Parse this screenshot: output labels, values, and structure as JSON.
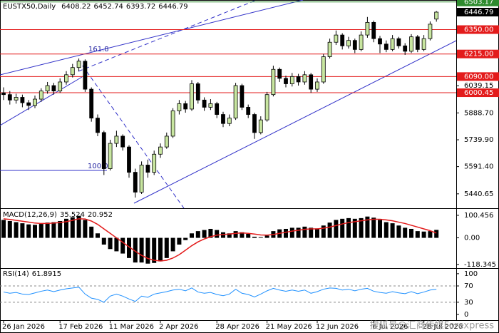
{
  "chart_data": [
    {
      "type": "candlestick",
      "symbol": "EUSTX50,Daily",
      "categories": [
        "26 Jan 2026",
        null,
        null,
        null,
        null,
        null,
        null,
        null,
        null,
        "17 Feb 2026",
        null,
        null,
        null,
        null,
        null,
        null,
        null,
        "11 Mar 2026",
        null,
        null,
        null,
        null,
        null,
        null,
        null,
        "2 Apr 2026",
        null,
        null,
        null,
        null,
        null,
        null,
        null,
        null,
        "28 Apr 2026",
        null,
        null,
        null,
        null,
        null,
        null,
        null,
        "21 May 2026",
        null,
        null,
        null,
        null,
        null,
        null,
        null,
        "12 Jun 2026",
        null,
        null,
        null,
        null,
        null,
        null,
        null,
        null,
        "6 Jul 2026",
        null,
        null,
        null,
        null,
        null,
        null,
        null,
        "28 Jul 2026",
        null,
        null
      ],
      "open": [
        6000,
        5990,
        5960,
        5975,
        5945,
        5930,
        5965,
        6010,
        6040,
        6010,
        6060,
        6100,
        6140,
        6175,
        6020,
        5860,
        5780,
        5580,
        5720,
        5760,
        5700,
        5560,
        5450,
        5600,
        5560,
        5660,
        5700,
        5760,
        5900,
        5940,
        5910,
        6050,
        5960,
        5920,
        5940,
        5880,
        5830,
        5860,
        6040,
        5920,
        5880,
        5780,
        5850,
        5990,
        6130,
        6080,
        6050,
        6090,
        6060,
        6100,
        6020,
        6060,
        6200,
        6280,
        6320,
        6260,
        6290,
        6240,
        6320,
        6390,
        6300,
        6270,
        6240,
        6300,
        6260,
        6230,
        6310,
        6240,
        6300,
        6408.22
      ],
      "high": [
        6030,
        6010,
        5995,
        5990,
        5960,
        5985,
        6025,
        6060,
        6055,
        6080,
        6120,
        6160,
        6190,
        6185,
        6030,
        5880,
        5790,
        5740,
        5790,
        5770,
        5710,
        5580,
        5620,
        5630,
        5680,
        5720,
        5780,
        5915,
        5960,
        5955,
        6070,
        6060,
        5975,
        5965,
        5950,
        5895,
        5880,
        6055,
        6050,
        5935,
        5890,
        5870,
        6005,
        6150,
        6140,
        6095,
        6110,
        6105,
        6120,
        6110,
        6080,
        6215,
        6300,
        6345,
        6330,
        6310,
        6300,
        6340,
        6420,
        6400,
        6315,
        6290,
        6320,
        6310,
        6275,
        6325,
        6320,
        6320,
        6395,
        6452.74
      ],
      "low": [
        5960,
        5935,
        5940,
        5920,
        5905,
        5915,
        5950,
        5995,
        5990,
        6000,
        6045,
        6085,
        6120,
        6005,
        5840,
        5760,
        5545,
        5570,
        5700,
        5680,
        5530,
        5420,
        5440,
        5530,
        5545,
        5640,
        5690,
        5750,
        5880,
        5890,
        5900,
        5940,
        5900,
        5905,
        5860,
        5810,
        5815,
        5850,
        5905,
        5860,
        5745,
        5770,
        5840,
        5980,
        6060,
        6030,
        6035,
        6040,
        6045,
        6000,
        6005,
        6050,
        6190,
        6265,
        6240,
        6245,
        6220,
        6230,
        6305,
        6280,
        6220,
        6225,
        6230,
        6245,
        6210,
        6220,
        6225,
        6230,
        6290,
        6393.72
      ],
      "close": [
        5990,
        5960,
        5975,
        5945,
        5930,
        5965,
        6010,
        6040,
        6010,
        6060,
        6100,
        6140,
        6175,
        6020,
        5860,
        5780,
        5580,
        5720,
        5760,
        5700,
        5560,
        5450,
        5600,
        5560,
        5660,
        5700,
        5760,
        5900,
        5940,
        5910,
        6050,
        5960,
        5920,
        5940,
        5880,
        5830,
        5860,
        6040,
        5920,
        5880,
        5780,
        5850,
        5990,
        6130,
        6080,
        6050,
        6090,
        6060,
        6100,
        6020,
        6060,
        6200,
        6280,
        6320,
        6260,
        6290,
        6240,
        6320,
        6390,
        6300,
        6270,
        6240,
        6300,
        6260,
        6230,
        6310,
        6240,
        6300,
        6380,
        6446.79
      ],
      "up_color": "#c8e6a0",
      "down_color": "#000000",
      "ylim": [
        5361,
        6506
      ],
      "yticks": [
        6039.15,
        {
          "value": 5888.7,
          "label": "5888.70"
        },
        {
          "value": 5739.9,
          "label": "5739.90"
        },
        {
          "value": 5591.4,
          "label": "5591.40"
        },
        5440.65
      ],
      "hlines": [
        {
          "value": 6503.17,
          "color": "#2e8b2e"
        },
        {
          "value": 6350,
          "label": "6350.00",
          "color": "#e31b1b"
        },
        {
          "value": 6215,
          "label": "6215.00",
          "color": "#e31b1b"
        },
        {
          "value": 6090,
          "label": "6090.00",
          "color": "#e31b1b"
        },
        {
          "value": 6000.45,
          "color": "#e31b1b"
        }
      ],
      "annotations": [
        "161.8",
        "100.0"
      ]
    },
    {
      "type": "macd",
      "title": "MACD(12,26,9)",
      "histogram": [
        80,
        75,
        70,
        65,
        60,
        58,
        62,
        68,
        70,
        75,
        85,
        92,
        98,
        80,
        50,
        20,
        -30,
        -50,
        -60,
        -70,
        -90,
        -110,
        -110,
        -115,
        -112,
        -105,
        -90,
        -60,
        -30,
        -10,
        20,
        30,
        35,
        40,
        35,
        25,
        20,
        30,
        25,
        18,
        5,
        3,
        10,
        30,
        38,
        40,
        45,
        45,
        50,
        45,
        42,
        55,
        68,
        80,
        85,
        88,
        85,
        88,
        95,
        90,
        80,
        70,
        65,
        55,
        45,
        40,
        30,
        28,
        30,
        35.524
      ],
      "signal": [
        85,
        82,
        78,
        74,
        70,
        66,
        64,
        64,
        66,
        68,
        72,
        78,
        85,
        84,
        75,
        60,
        40,
        20,
        0,
        -20,
        -40,
        -60,
        -78,
        -92,
        -100,
        -103,
        -100,
        -90,
        -75,
        -55,
        -35,
        -18,
        -5,
        5,
        12,
        15,
        17,
        20,
        22,
        20,
        17,
        13,
        12,
        15,
        20,
        25,
        30,
        34,
        38,
        40,
        40,
        43,
        48,
        55,
        62,
        68,
        72,
        76,
        80,
        83,
        83,
        80,
        76,
        70,
        64,
        56,
        48,
        40,
        32,
        20.952
      ],
      "bar_color": "#000000",
      "signal_color": "#e31b1b",
      "ylim": [
        -135,
        129
      ],
      "yticks": [
        100.456,
        {
          "value": 0,
          "label": "0.00"
        },
        -118.345
      ]
    },
    {
      "type": "line",
      "title": "RSI(14)",
      "values": [
        55,
        52,
        54,
        50,
        49,
        53,
        57,
        60,
        56,
        60,
        63,
        65,
        67,
        50,
        40,
        37,
        30,
        45,
        50,
        45,
        38,
        32,
        45,
        42,
        50,
        53,
        56,
        60,
        62,
        58,
        65,
        55,
        52,
        54,
        49,
        46,
        50,
        62,
        52,
        49,
        43,
        50,
        58,
        64,
        60,
        57,
        60,
        57,
        60,
        52,
        56,
        62,
        65,
        64,
        60,
        62,
        58,
        62,
        64,
        57,
        54,
        52,
        56,
        53,
        51,
        56,
        51,
        55,
        60,
        61.8915
      ],
      "color": "#1e90ff",
      "ylim": [
        -14,
        112
      ],
      "yticks": [
        100,
        70,
        30,
        0
      ]
    }
  ],
  "watermark": "搜狐号@汇商传媒Forexpress"
}
